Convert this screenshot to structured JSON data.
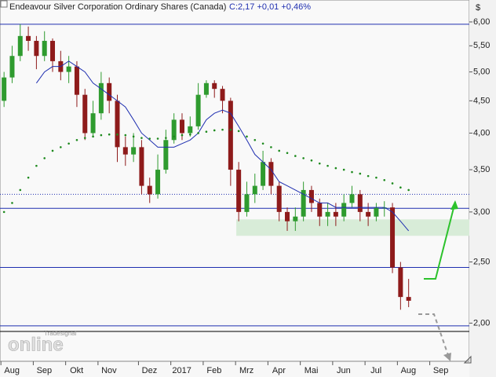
{
  "chart_data": {
    "type": "candlestick",
    "title": "Endeavour Silver Corporation Ordinary Shares (Canada)",
    "quote": "C:2,17 +0,01 +0,46%",
    "currency": "$",
    "watermark": [
      "Tradesignal",
      "online"
    ],
    "log_scale": true,
    "ylim": [
      1.74,
      6.5
    ],
    "yticks": [
      {
        "value": 2,
        "label": "2,00"
      },
      {
        "value": 2.5,
        "label": "2,50"
      },
      {
        "value": 3,
        "label": "3,00"
      },
      {
        "value": 3.5,
        "label": "3,50"
      },
      {
        "value": 4,
        "label": "4,00"
      },
      {
        "value": 4.5,
        "label": "4,50"
      },
      {
        "value": 5,
        "label": "5,00"
      },
      {
        "value": 5.5,
        "label": "5,50"
      },
      {
        "value": 6,
        "label": "6,00"
      }
    ],
    "xlim": [
      -0.5,
      57.5
    ],
    "xticks": [
      {
        "value": 0,
        "label": "Aug"
      },
      {
        "value": 4,
        "label": "Sep"
      },
      {
        "value": 8,
        "label": "Okt"
      },
      {
        "value": 12,
        "label": "Nov"
      },
      {
        "value": 17,
        "label": "Dez"
      },
      {
        "value": 21,
        "label": "2017"
      },
      {
        "value": 25,
        "label": "Feb"
      },
      {
        "value": 29,
        "label": "Mrz"
      },
      {
        "value": 33,
        "label": "Apr"
      },
      {
        "value": 37,
        "label": "Mai"
      },
      {
        "value": 41,
        "label": "Jun"
      },
      {
        "value": 45,
        "label": "Jul"
      },
      {
        "value": 49,
        "label": "Aug"
      },
      {
        "value": 53,
        "label": "Sep"
      }
    ],
    "candles": {
      "up_color": "#2f9b2f",
      "down_color": "#8e1b1b",
      "open": [
        4.5,
        4.9,
        5.3,
        5.7,
        5.6,
        5.3,
        5.6,
        5.2,
        5.0,
        5.1,
        4.6,
        4.0,
        4.3,
        4.8,
        4.5,
        3.8,
        3.7,
        3.8,
        3.3,
        3.2,
        3.5,
        3.9,
        4.2,
        4.0,
        4.1,
        4.6,
        4.8,
        4.7,
        4.5,
        3.5,
        3.0,
        3.2,
        3.3,
        3.6,
        3.3,
        3.0,
        2.9,
        2.95,
        3.25,
        3.1,
        2.95,
        3.0,
        2.95,
        3.1,
        3.2,
        3.0,
        2.95,
        3.05,
        3.05,
        2.45,
        2.2
      ],
      "high": [
        5.0,
        5.5,
        5.95,
        5.9,
        5.7,
        5.8,
        5.65,
        5.4,
        5.3,
        5.2,
        4.7,
        4.5,
        5.0,
        4.9,
        4.6,
        3.95,
        4.0,
        3.9,
        3.4,
        3.7,
        4.05,
        4.3,
        4.3,
        4.25,
        4.8,
        4.85,
        4.85,
        4.75,
        4.55,
        3.6,
        3.35,
        3.45,
        3.75,
        3.65,
        3.35,
        3.05,
        3.05,
        3.35,
        3.3,
        3.15,
        3.1,
        3.1,
        3.2,
        3.3,
        3.25,
        3.1,
        3.1,
        3.12,
        3.1,
        2.5,
        2.35
      ],
      "low": [
        4.4,
        4.8,
        5.2,
        5.4,
        5.05,
        5.2,
        5.0,
        4.85,
        4.8,
        4.4,
        3.9,
        3.95,
        4.2,
        4.3,
        3.6,
        3.55,
        3.6,
        3.2,
        3.1,
        3.15,
        3.45,
        3.85,
        3.9,
        3.95,
        4.05,
        4.55,
        4.55,
        4.3,
        3.3,
        2.9,
        2.95,
        3.1,
        3.25,
        3.2,
        2.9,
        2.8,
        2.8,
        2.9,
        3.0,
        2.85,
        2.85,
        2.85,
        2.9,
        3.05,
        2.9,
        2.85,
        2.9,
        2.95,
        2.4,
        2.1,
        2.12
      ],
      "close": [
        4.9,
        5.3,
        5.7,
        5.6,
        5.3,
        5.6,
        5.2,
        5.0,
        5.1,
        4.6,
        4.0,
        4.3,
        4.8,
        4.5,
        3.8,
        3.7,
        3.8,
        3.3,
        3.2,
        3.5,
        3.9,
        4.2,
        4.0,
        4.1,
        4.6,
        4.8,
        4.7,
        4.5,
        3.5,
        3.0,
        3.2,
        3.3,
        3.6,
        3.3,
        3.0,
        2.9,
        2.95,
        3.25,
        3.1,
        2.95,
        3.0,
        2.95,
        3.1,
        3.2,
        3.0,
        2.95,
        3.05,
        3.05,
        2.45,
        2.2,
        2.17
      ]
    },
    "series": [
      {
        "name": "MA",
        "color": "#1f2fb0",
        "style": "solid",
        "values": [
          null,
          null,
          null,
          null,
          4.8,
          5.0,
          5.1,
          5.1,
          5.2,
          5.1,
          5.0,
          4.8,
          4.7,
          4.6,
          4.5,
          4.4,
          4.2,
          4.0,
          3.9,
          3.8,
          3.8,
          3.8,
          3.85,
          3.9,
          4.0,
          4.2,
          4.3,
          4.35,
          4.3,
          4.1,
          3.9,
          3.7,
          3.6,
          3.5,
          3.35,
          3.3,
          3.25,
          3.2,
          3.15,
          3.1,
          3.1,
          3.05,
          3.05,
          3.05,
          3.05,
          3.05,
          3.05,
          3.05,
          3.0,
          2.9,
          2.8
        ]
      },
      {
        "name": "MA200",
        "color": "#1e8a1e",
        "style": "dotted",
        "values": [
          3.0,
          3.1,
          3.25,
          3.4,
          3.55,
          3.65,
          3.75,
          3.8,
          3.85,
          3.9,
          3.93,
          3.95,
          3.97,
          3.98,
          3.98,
          3.97,
          3.95,
          3.93,
          3.92,
          3.92,
          3.93,
          3.95,
          3.97,
          3.98,
          4.0,
          4.02,
          4.04,
          4.05,
          4.05,
          4.03,
          3.95,
          3.9,
          3.85,
          3.8,
          3.75,
          3.72,
          3.68,
          3.65,
          3.62,
          3.58,
          3.55,
          3.52,
          3.5,
          3.47,
          3.45,
          3.42,
          3.4,
          3.37,
          3.33,
          3.28,
          3.25
        ]
      }
    ],
    "levels": [
      5.95,
      3.04,
      2.45,
      1.98
    ],
    "level_color": "#1f2fb0",
    "dotted_level": 3.2,
    "support_line": 1.94,
    "zone": [
      2.75,
      2.92
    ],
    "zone_color": "#d8ecd8"
  }
}
